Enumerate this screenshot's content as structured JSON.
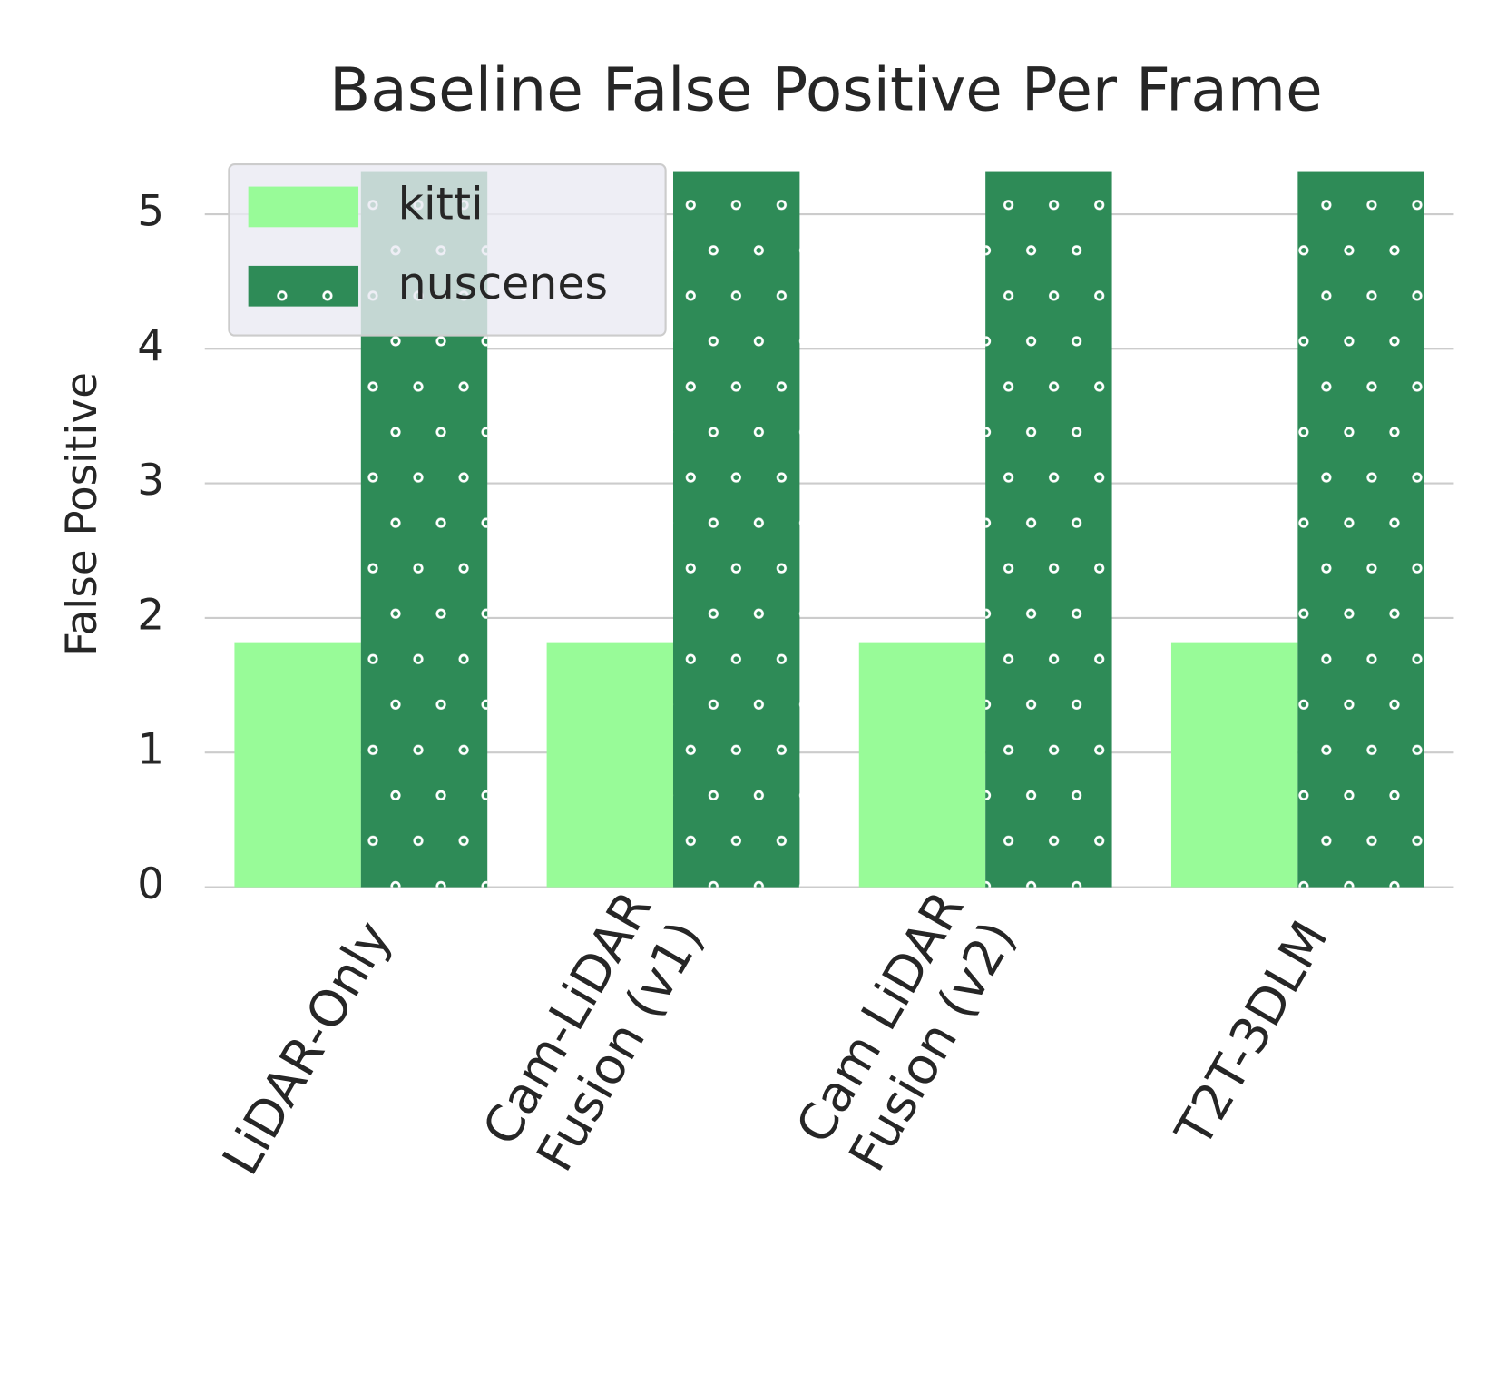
{
  "chart_data": {
    "type": "bar",
    "title": "Baseline False Positive Per Frame",
    "y_label": "False Positive",
    "categories": [
      "LiDAR-Only",
      "Cam-LiDAR\nFusion (v1)",
      "Cam LiDAR\nFusion (v2)",
      "T2T-3DLM"
    ],
    "series": [
      {
        "name": "kitti",
        "color": "#98fb98",
        "values": [
          1.82,
          1.82,
          1.82,
          1.82
        ]
      },
      {
        "name": "nuscenes",
        "color": "#2e8b57",
        "hatch": "dots",
        "values": [
          5.32,
          5.32,
          5.32,
          5.32
        ]
      }
    ],
    "ylim": [
      0,
      5.32
    ],
    "yticks": [
      0,
      1,
      2,
      3,
      4,
      5
    ],
    "grid": true,
    "legend": "upper left"
  }
}
